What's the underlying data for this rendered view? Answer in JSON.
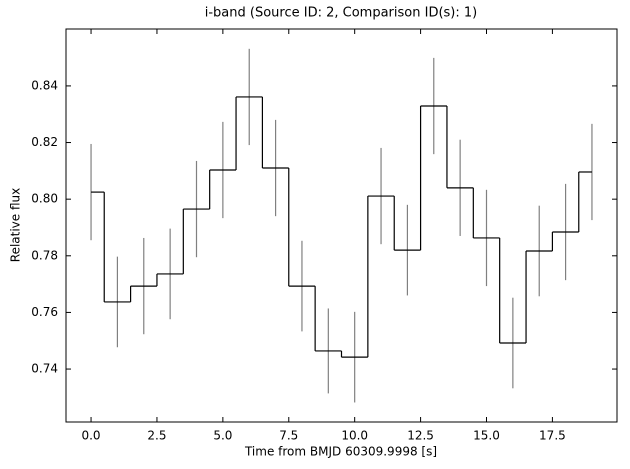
{
  "chart_data": {
    "type": "step",
    "title": "i-band (Source ID: 2, Comparison ID(s): 1)",
    "x_label": "Time from BMJD 60309.9998 [s]",
    "y_label": "Relative flux",
    "x": [
      0,
      1,
      2,
      3,
      4,
      5,
      6,
      7,
      8,
      9,
      10,
      11,
      12,
      13,
      14,
      15,
      16,
      17,
      18,
      19
    ],
    "values": [
      0.8025,
      0.7637,
      0.7693,
      0.7736,
      0.7965,
      0.8103,
      0.8361,
      0.811,
      0.7693,
      0.7464,
      0.7442,
      0.8011,
      0.782,
      0.8329,
      0.804,
      0.7863,
      0.7492,
      0.7817,
      0.7884,
      0.8096
    ],
    "errors": [
      0.017,
      0.016,
      0.017,
      0.016,
      0.017,
      0.017,
      0.017,
      0.017,
      0.016,
      0.015,
      0.016,
      0.017,
      0.016,
      0.017,
      0.017,
      0.017,
      0.016,
      0.016,
      0.017,
      0.017
    ],
    "color": "#000000",
    "error_color": "#808080",
    "xlim": [
      -0.95,
      19.95
    ],
    "ylim": [
      0.7213,
      0.8601
    ],
    "xticks": [
      {
        "value": 0,
        "label": "0.0"
      },
      2.5,
      {
        "value": 5,
        "label": "5.0"
      },
      7.5,
      {
        "value": 10,
        "label": "10.0"
      },
      12.5,
      {
        "value": 15,
        "label": "15.0"
      },
      17.5
    ],
    "yticks": [
      0.74,
      0.76,
      0.78,
      {
        "value": 0.8,
        "label": "0.80"
      },
      0.82,
      0.84
    ],
    "grid": false
  }
}
